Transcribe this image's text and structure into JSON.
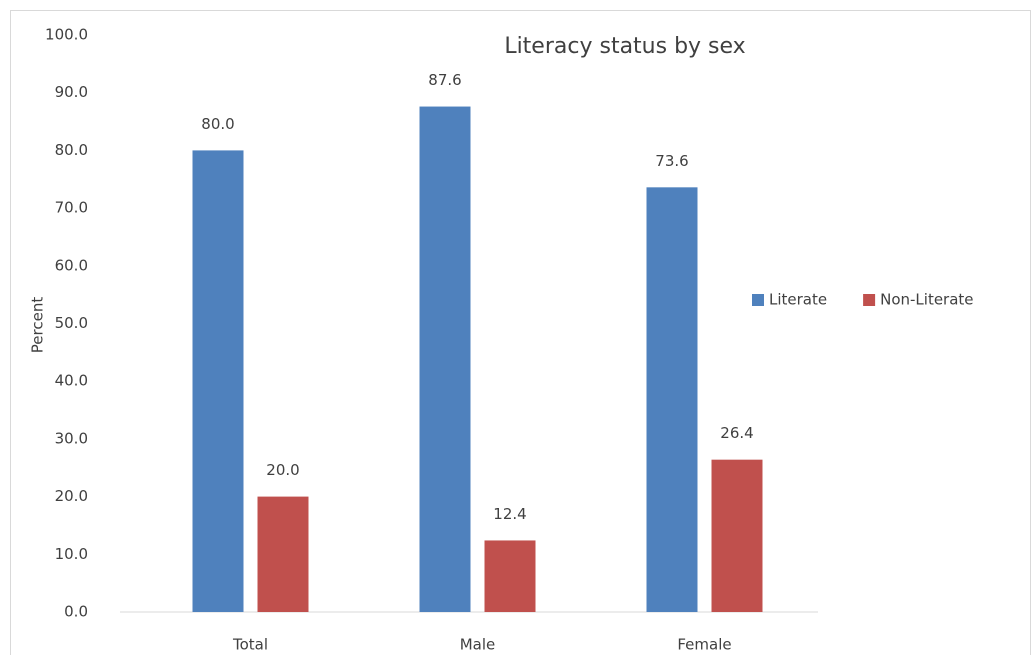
{
  "chart_data": {
    "type": "bar",
    "title": "Literacy status by sex",
    "y_label": "Percent",
    "categories": [
      "Total",
      "Male",
      "Female"
    ],
    "series": [
      {
        "name": "Literate",
        "color": "#4f81bd",
        "values": [
          80.0,
          87.6,
          73.6
        ],
        "value_labels": [
          "80.0",
          "87.6",
          "73.6"
        ]
      },
      {
        "name": "Non-Literate",
        "color": "#c0504d",
        "values": [
          20.0,
          12.4,
          26.4
        ],
        "value_labels": [
          "20.0",
          "12.4",
          "26.4"
        ]
      }
    ],
    "ylim": [
      0,
      100
    ],
    "yticks": [
      {
        "value": 0,
        "label": "0.0"
      },
      {
        "value": 10,
        "label": "10.0"
      },
      {
        "value": 20,
        "label": "20.0"
      },
      {
        "value": 30,
        "label": "30.0"
      },
      {
        "value": 40,
        "label": "40.0"
      },
      {
        "value": 50,
        "label": "50.0"
      },
      {
        "value": 60,
        "label": "60.0"
      },
      {
        "value": 70,
        "label": "70.0"
      },
      {
        "value": 80,
        "label": "80.0"
      },
      {
        "value": 90,
        "label": "90.0"
      },
      {
        "value": 100,
        "label": "100.0"
      }
    ],
    "grid": false,
    "legend": "right"
  }
}
